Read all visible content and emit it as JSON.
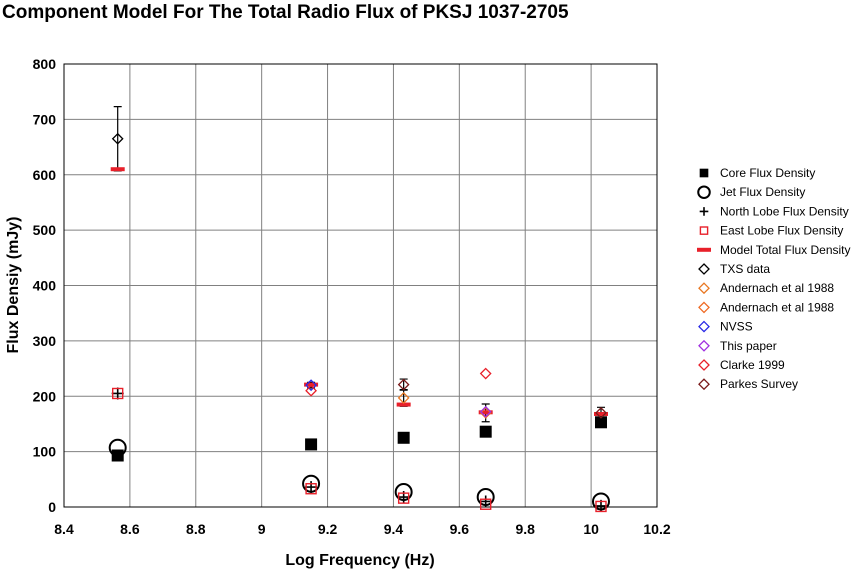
{
  "chart_data": {
    "type": "scatter",
    "title": "Component Model For The Total Radio Flux of PKSJ 1037-2705",
    "xlabel": "Log Frequency (Hz)",
    "ylabel": "Flux Densiy (mJy)",
    "xlim": [
      8.4,
      10.2
    ],
    "ylim": [
      0,
      800
    ],
    "xticks": [
      "8.4",
      "8.6",
      "8.8",
      "9",
      "9.2",
      "9.4",
      "9.6",
      "9.8",
      "10",
      "10.2"
    ],
    "yticks": [
      "0",
      "100",
      "200",
      "300",
      "400",
      "500",
      "600",
      "700",
      "800"
    ],
    "grid": true,
    "legend_position": "right",
    "series": [
      {
        "name": "Core Flux Density",
        "marker": "filled-square",
        "color": "#000000",
        "points": [
          [
            8.563,
            93
          ],
          [
            9.15,
            113
          ],
          [
            9.431,
            125
          ],
          [
            9.68,
            136
          ],
          [
            10.03,
            153
          ]
        ]
      },
      {
        "name": "Jet Flux Density",
        "marker": "open-circle",
        "color": "#000000",
        "points": [
          [
            8.563,
            107
          ],
          [
            9.15,
            42
          ],
          [
            9.431,
            27
          ],
          [
            9.68,
            18
          ],
          [
            10.03,
            10
          ]
        ]
      },
      {
        "name": "North Lobe Flux Density",
        "marker": "plus",
        "color": "#000000",
        "points": [
          [
            8.563,
            205
          ],
          [
            9.15,
            36
          ],
          [
            9.431,
            18
          ],
          [
            9.68,
            10
          ],
          [
            10.03,
            2
          ]
        ]
      },
      {
        "name": "East Lobe Flux Density",
        "marker": "open-square",
        "color": "#e8202a",
        "points": [
          [
            8.563,
            205
          ],
          [
            9.15,
            33
          ],
          [
            9.431,
            16
          ],
          [
            9.68,
            5
          ],
          [
            10.03,
            1
          ]
        ]
      },
      {
        "name": "Model Total Flux Density",
        "marker": "dash",
        "color": "#e8202a",
        "points": [
          [
            8.563,
            610
          ],
          [
            9.15,
            221
          ],
          [
            9.431,
            185
          ],
          [
            9.68,
            171
          ],
          [
            10.03,
            168
          ]
        ]
      },
      {
        "name": "TXS data",
        "marker": "open-diamond",
        "color": "#000000",
        "points": [
          [
            8.563,
            665
          ]
        ],
        "error": [
          58
        ]
      },
      {
        "name": "Andernach et al 1988",
        "marker": "open-diamond",
        "color": "#e87722",
        "points": [
          [
            9.431,
            197
          ]
        ],
        "error": [
          15
        ]
      },
      {
        "name": "Andernach et al 1988",
        "marker": "open-diamond",
        "color": "#ef6a24",
        "points": [
          [
            9.68,
            170
          ]
        ],
        "error": [
          16
        ]
      },
      {
        "name": "NVSS",
        "marker": "open-diamond",
        "color": "#2a2ae6",
        "points": [
          [
            9.15,
            220
          ]
        ],
        "error": [
          5
        ]
      },
      {
        "name": "This paper",
        "marker": "open-diamond",
        "color": "#a030e0",
        "points": [
          [
            9.68,
            172
          ]
        ],
        "error": [
          0
        ]
      },
      {
        "name": "Clarke 1999",
        "marker": "open-diamond",
        "color": "#e8202a",
        "points": [
          [
            9.15,
            210
          ],
          [
            9.68,
            241
          ]
        ],
        "error": [
          0,
          0
        ]
      },
      {
        "name": "Parkes Survey",
        "marker": "open-diamond",
        "color": "#7a1a1a",
        "points": [
          [
            9.431,
            221
          ],
          [
            10.03,
            170
          ]
        ],
        "error": [
          10,
          10
        ]
      }
    ]
  }
}
